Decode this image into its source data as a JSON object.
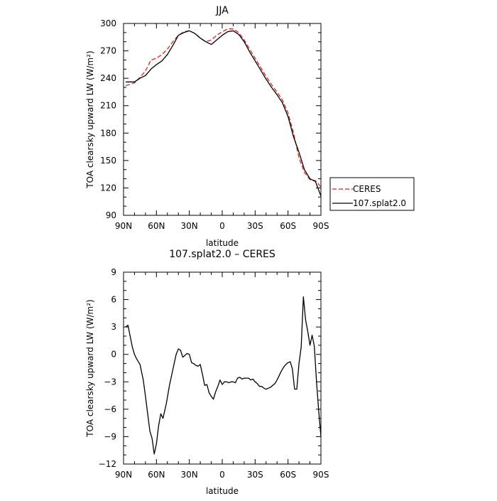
{
  "chart_data": [
    {
      "type": "line",
      "title": "JJA",
      "xlabel": "latitude",
      "ylabel": "TOA clearsky upward LW (W/m²)",
      "xlim": [
        90,
        -90
      ],
      "ylim": [
        90,
        300
      ],
      "xticks": [
        90,
        60,
        30,
        0,
        -30,
        -60,
        -90
      ],
      "xtick_labels": [
        "90N",
        "60N",
        "30N",
        "0",
        "30S",
        "60S",
        "90S"
      ],
      "yticks": [
        90,
        120,
        150,
        180,
        210,
        240,
        270,
        300
      ],
      "ytick_labels": [
        "90",
        "120",
        "150",
        "180",
        "210",
        "240",
        "270",
        "300"
      ],
      "grid": false,
      "legend": "outside-right",
      "series": [
        {
          "name": "CERES",
          "color": "#e0201b",
          "dash": "dashed",
          "x": [
            88,
            85,
            80,
            75,
            70,
            65,
            60,
            55,
            50,
            45,
            40,
            35,
            30,
            25,
            20,
            15,
            10,
            5,
            0,
            -5,
            -10,
            -15,
            -20,
            -25,
            -30,
            -35,
            -40,
            -45,
            -50,
            -55,
            -60,
            -65,
            -70,
            -75,
            -80,
            -85,
            -90
          ],
          "y": [
            232,
            233,
            235,
            241,
            248,
            260,
            262,
            266,
            272,
            280,
            287,
            291,
            292,
            289,
            284,
            280,
            282,
            287,
            291,
            294,
            294,
            290,
            282,
            272,
            262,
            252,
            242,
            233,
            225,
            216,
            202,
            180,
            153,
            137,
            129,
            128,
            121
          ]
        },
        {
          "name": "107.splat2.0",
          "color": "#000000",
          "dash": "solid",
          "x": [
            88,
            85,
            80,
            75,
            70,
            65,
            60,
            55,
            50,
            45,
            40,
            35,
            30,
            25,
            20,
            15,
            10,
            5,
            0,
            -5,
            -10,
            -15,
            -20,
            -25,
            -30,
            -35,
            -40,
            -45,
            -50,
            -55,
            -60,
            -65,
            -70,
            -75,
            -80,
            -85,
            -90
          ],
          "y": [
            236,
            236,
            236,
            240,
            243,
            250,
            255,
            259,
            266,
            276,
            287,
            290,
            292,
            289,
            284,
            280,
            277,
            282,
            287,
            291,
            292,
            288,
            280,
            269,
            259,
            249,
            239,
            230,
            222,
            213,
            198,
            176,
            159,
            140,
            130,
            127,
            111
          ]
        }
      ]
    },
    {
      "type": "line",
      "title": "107.splat2.0 – CERES",
      "xlabel": "latitude",
      "ylabel": "TOA clearsky upward LW (W/m²)",
      "xlim": [
        90,
        -90
      ],
      "ylim": [
        -12,
        9
      ],
      "xticks": [
        90,
        60,
        30,
        0,
        -30,
        -60,
        -90
      ],
      "xtick_labels": [
        "90N",
        "60N",
        "30N",
        "0",
        "30S",
        "60S",
        "90S"
      ],
      "yticks": [
        -12,
        -9,
        -6,
        -3,
        0,
        3,
        6,
        9
      ],
      "ytick_labels": [
        "−12",
        "−9",
        "−6",
        "−3",
        "0",
        "3",
        "6",
        "9"
      ],
      "grid": false,
      "series": [
        {
          "color": "#000000",
          "dash": "solid",
          "x": [
            88,
            86,
            84,
            82,
            80,
            78,
            75,
            72,
            70,
            68,
            66,
            64,
            62,
            60,
            58,
            56,
            54,
            51,
            48,
            46,
            44,
            42,
            40,
            38,
            36,
            34,
            32,
            30,
            28,
            26,
            24,
            22,
            20,
            18,
            16,
            14,
            12,
            10,
            8,
            6,
            4,
            2,
            0,
            -2,
            -4,
            -6,
            -8,
            -10,
            -12,
            -14,
            -16,
            -18,
            -20,
            -22,
            -24,
            -26,
            -28,
            -30,
            -32,
            -34,
            -36,
            -38,
            -40,
            -42,
            -44,
            -46,
            -48,
            -50,
            -52,
            -54,
            -56,
            -58,
            -60,
            -62,
            -64,
            -66,
            -68,
            -70,
            -72,
            -74,
            -76,
            -78,
            -80,
            -82,
            -84,
            -86,
            -88,
            -90
          ],
          "y": [
            3,
            3.2,
            2,
            0.8,
            0,
            -0.5,
            -1.1,
            -2.8,
            -4.6,
            -6.5,
            -8.4,
            -9.2,
            -10.9,
            -9.8,
            -7.8,
            -6.5,
            -7,
            -5.4,
            -3.3,
            -2.2,
            -1.1,
            0,
            0.6,
            0.45,
            -0.3,
            -0.1,
            0.1,
            0,
            -0.9,
            -1,
            -1.2,
            -1.3,
            -1.1,
            -2.2,
            -3.4,
            -3.3,
            -4.2,
            -4.6,
            -4.9,
            -4.1,
            -3.5,
            -2.8,
            -3.3,
            -3.0,
            -3.0,
            -3.1,
            -3.0,
            -3.0,
            -3.1,
            -2.6,
            -2.5,
            -2.7,
            -2.6,
            -2.6,
            -2.6,
            -2.8,
            -2.7,
            -3.0,
            -3.2,
            -3.5,
            -3.5,
            -3.7,
            -3.8,
            -3.7,
            -3.6,
            -3.4,
            -3.2,
            -2.8,
            -2.3,
            -1.8,
            -1.4,
            -1.1,
            -0.9,
            -0.8,
            -1.6,
            -3.8,
            -3.8,
            -1.0,
            0.8,
            6.3,
            3.8,
            2.5,
            1.0,
            2.1,
            0.9,
            -3.0,
            -6.2,
            -9.0
          ]
        }
      ]
    }
  ]
}
